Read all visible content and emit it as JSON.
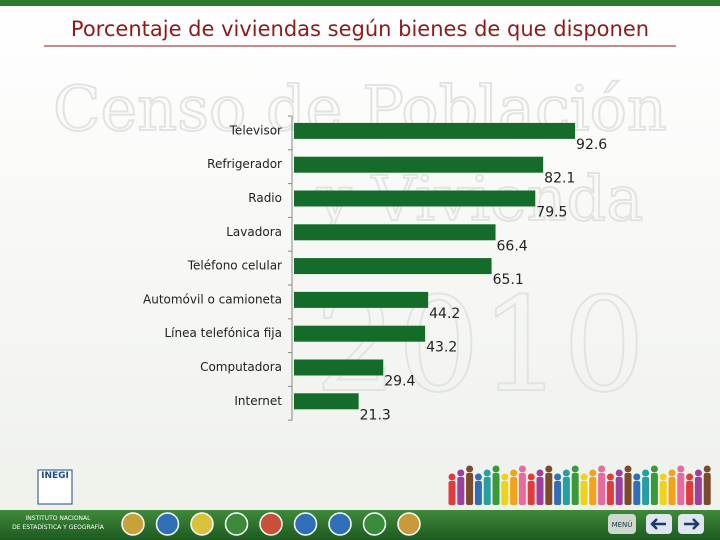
{
  "chart_data": {
    "type": "bar",
    "orientation": "horizontal",
    "title": "Porcentaje de viviendas según bienes de que disponen",
    "categories": [
      "Televisor",
      "Refrigerador",
      "Radio",
      "Lavadora",
      "Teléfono celular",
      "Automóvil o camioneta",
      "Línea telefónica fija",
      "Computadora",
      "Internet"
    ],
    "values": [
      92.6,
      82.1,
      79.5,
      66.4,
      65.1,
      44.2,
      43.2,
      29.4,
      21.3
    ],
    "color": "#156b2a"
  },
  "watermark": {
    "line1": "Censo de Población",
    "line2": "y Vivienda",
    "year": "2010"
  },
  "footer": {
    "logo": "INEGI",
    "institute_line1": "INSTITUTO NACIONAL",
    "institute_line2": "DE ESTADÍSTICA Y GEOGRAFÍA",
    "menu": "MENÚ"
  }
}
